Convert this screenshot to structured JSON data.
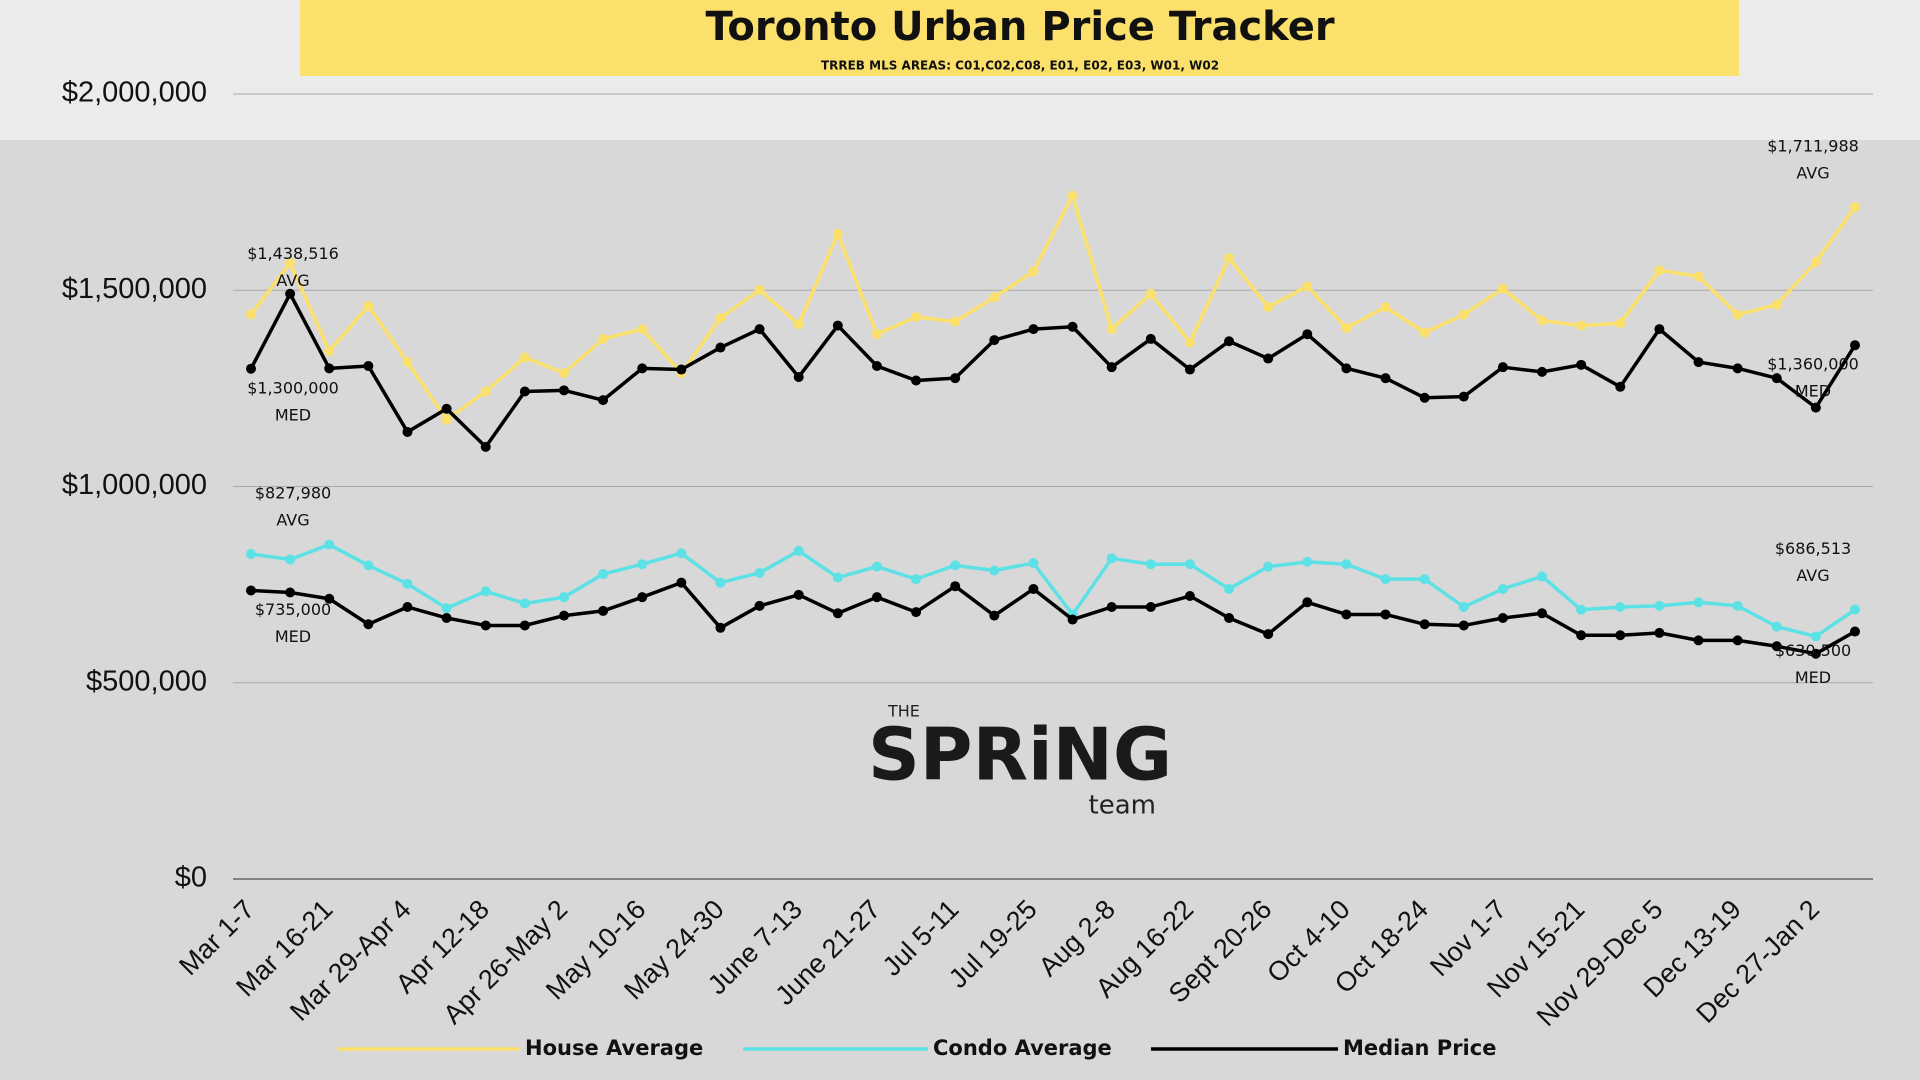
{
  "chart_data": {
    "type": "line",
    "title": "Toronto Urban Price Tracker",
    "subtitle": "TRREB MLS AREAS: C01,C02,C08, E01, E02, E03, W01, W02",
    "logo": {
      "small": "THE",
      "main": "SPRiNG",
      "sub": "team"
    },
    "categories": [
      "Mar 1-7",
      null,
      "Mar 16-21",
      null,
      "Mar 29-Apr 4",
      null,
      "Apr 12-18",
      null,
      "Apr 26-May 2",
      null,
      "May 10-16",
      null,
      "May 24-30",
      null,
      "June 7-13",
      null,
      "June 21-27",
      null,
      "Jul 5-11",
      null,
      "Jul 19-25",
      null,
      "Aug 2-8",
      null,
      "Aug 16-22",
      null,
      "Sept 20-26",
      null,
      "Oct 4-10",
      null,
      "Oct 18-24",
      null,
      "Nov 1-7",
      null,
      "Nov 15-21",
      null,
      "Nov 29-Dec 5",
      null,
      "Dec 13-19",
      null,
      "Dec 27-Jan 2",
      null
    ],
    "ylim": [
      0,
      2000000
    ],
    "yticks": [
      {
        "value": 0,
        "label": "$0"
      },
      {
        "value": 500000,
        "label": "$500,000"
      },
      {
        "value": 1000000,
        "label": "$1,000,000"
      },
      {
        "value": 1500000,
        "label": "$1,500,000"
      },
      {
        "value": 2000000,
        "label": "$2,000,000"
      }
    ],
    "grid": true,
    "legend": "bottom",
    "series": [
      {
        "name": "House Average",
        "color": "#fbe06c",
        "tag": "AVG",
        "values": [
          1438516,
          1569000,
          1345000,
          1460000,
          1317000,
          1170000,
          1242000,
          1329000,
          1289000,
          1376000,
          1401000,
          1289000,
          1429000,
          1501000,
          1413000,
          1644000,
          1388000,
          1432000,
          1420000,
          1482000,
          1548000,
          1741000,
          1401000,
          1491000,
          1367000,
          1582000,
          1457000,
          1510000,
          1404000,
          1457000,
          1392000,
          1438000,
          1504000,
          1423000,
          1410000,
          1416000,
          1551000,
          1535000,
          1438000,
          1463000,
          1572000,
          1711988
        ],
        "value_labels": [
          "$1,438,516",
          null,
          null,
          null,
          null,
          null,
          null,
          null,
          null,
          null,
          null,
          null,
          null,
          null,
          null,
          null,
          null,
          null,
          null,
          null,
          null,
          null,
          null,
          null,
          null,
          null,
          null,
          null,
          null,
          null,
          null,
          null,
          null,
          null,
          null,
          null,
          null,
          null,
          null,
          null,
          null,
          "$1,711,988"
        ]
      },
      {
        "name": "Condo Average",
        "color": "#5ce1e6",
        "tag": "AVG",
        "values": [
          827980,
          814000,
          852000,
          799000,
          752000,
          690000,
          733000,
          702000,
          718000,
          777000,
          802000,
          830000,
          755000,
          780000,
          836000,
          768000,
          796000,
          764000,
          799000,
          786000,
          805000,
          674000,
          817000,
          802000,
          802000,
          739000,
          796000,
          808000,
          802000,
          764000,
          764000,
          693000,
          739000,
          771000,
          686000,
          693000,
          696000,
          705000,
          696000,
          643000,
          618000,
          686513
        ],
        "value_labels": [
          "$827,980",
          null,
          null,
          null,
          null,
          null,
          null,
          null,
          null,
          null,
          null,
          null,
          null,
          null,
          null,
          null,
          null,
          null,
          null,
          null,
          null,
          null,
          null,
          null,
          null,
          null,
          null,
          null,
          null,
          null,
          null,
          null,
          null,
          null,
          null,
          null,
          null,
          null,
          null,
          null,
          null,
          "$686,513"
        ]
      },
      {
        "name": "Median Price",
        "color": "#000000",
        "tag": "MED",
        "values": [
          1300000,
          1491000,
          1301000,
          1307000,
          1139000,
          1198000,
          1101000,
          1242000,
          1245000,
          1220000,
          1301000,
          1298000,
          1354000,
          1401000,
          1279000,
          1410000,
          1307000,
          1270000,
          1276000,
          1373000,
          1401000,
          1407000,
          1304000,
          1376000,
          1298000,
          1370000,
          1326000,
          1388000,
          1301000,
          1276000,
          1226000,
          1229000,
          1304000,
          1292000,
          1310000,
          1254000,
          1401000,
          1317000,
          1301000,
          1276000,
          1201000,
          1360000
        ],
        "value_labels": [
          "$1,300,000",
          null,
          null,
          null,
          null,
          null,
          null,
          null,
          null,
          null,
          null,
          null,
          null,
          null,
          null,
          null,
          null,
          null,
          null,
          null,
          null,
          null,
          null,
          null,
          null,
          null,
          null,
          null,
          null,
          null,
          null,
          null,
          null,
          null,
          null,
          null,
          null,
          null,
          null,
          null,
          null,
          "$1,360,000"
        ]
      },
      {
        "color": "#000000",
        "tag": "MED",
        "values": [
          735000,
          730000,
          714000,
          649000,
          693000,
          665000,
          646000,
          646000,
          671000,
          683000,
          718000,
          755000,
          640000,
          696000,
          724000,
          677000,
          718000,
          680000,
          746000,
          671000,
          739000,
          661000,
          693000,
          693000,
          721000,
          665000,
          624000,
          705000,
          674000,
          674000,
          649000,
          646000,
          665000,
          677000,
          621000,
          621000,
          627000,
          608000,
          608000,
          593000,
          574000,
          630500
        ],
        "value_labels": [
          "$735,000",
          null,
          null,
          null,
          null,
          null,
          null,
          null,
          null,
          null,
          null,
          null,
          null,
          null,
          null,
          null,
          null,
          null,
          null,
          null,
          null,
          null,
          null,
          null,
          null,
          null,
          null,
          null,
          null,
          null,
          null,
          null,
          null,
          null,
          null,
          null,
          null,
          null,
          null,
          null,
          null,
          "$630,500"
        ]
      }
    ]
  }
}
